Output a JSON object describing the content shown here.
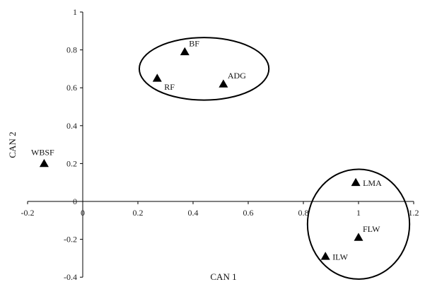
{
  "chart_data": {
    "type": "scatter",
    "title": "",
    "xlabel": "CAN 1",
    "ylabel": "CAN 2",
    "xlim": [
      -0.2,
      1.2
    ],
    "ylim": [
      -0.4,
      1.0
    ],
    "grid": false,
    "legend": "none",
    "marker": "triangle",
    "marker_color": "#000000",
    "x_ticks": [
      {
        "value": -0.2,
        "label": "-0.2"
      },
      {
        "value": 0,
        "label": "0"
      },
      {
        "value": 0.2,
        "label": "0.2"
      },
      {
        "value": 0.4,
        "label": "0.4"
      },
      {
        "value": 0.6,
        "label": "0.6"
      },
      {
        "value": 0.8,
        "label": "0.8"
      },
      {
        "value": 1.0,
        "label": "1"
      },
      {
        "value": 1.2,
        "label": "1.2"
      }
    ],
    "y_ticks": [
      {
        "value": -0.4,
        "label": "-0.4"
      },
      {
        "value": -0.2,
        "label": "-0.2"
      },
      {
        "value": 0,
        "label": "0"
      },
      {
        "value": 0.2,
        "label": "0.2"
      },
      {
        "value": 0.4,
        "label": "0.4"
      },
      {
        "value": 0.6,
        "label": "0.6"
      },
      {
        "value": 0.8,
        "label": "0.8"
      },
      {
        "value": 1.0,
        "label": "1"
      }
    ],
    "points": [
      {
        "label": "BF",
        "x": 0.37,
        "y": 0.79,
        "label_pos": "above-right"
      },
      {
        "label": "RF",
        "x": 0.27,
        "y": 0.65,
        "label_pos": "below-right"
      },
      {
        "label": "ADG",
        "x": 0.51,
        "y": 0.62,
        "label_pos": "above-right"
      },
      {
        "label": "WBSF",
        "x": -0.14,
        "y": 0.2,
        "label_pos": "above-left"
      },
      {
        "label": "LMA",
        "x": 0.99,
        "y": 0.1,
        "label_pos": "right"
      },
      {
        "label": "FLW",
        "x": 1.0,
        "y": -0.19,
        "label_pos": "above-right"
      },
      {
        "label": "ILW",
        "x": 0.88,
        "y": -0.29,
        "label_pos": "right"
      }
    ],
    "group_ellipses": [
      {
        "cx": 0.44,
        "cy": 0.7,
        "rx": 0.235,
        "ry": 0.165
      },
      {
        "cx": 1.0,
        "cy": -0.12,
        "rx": 0.185,
        "ry": 0.29
      }
    ]
  }
}
